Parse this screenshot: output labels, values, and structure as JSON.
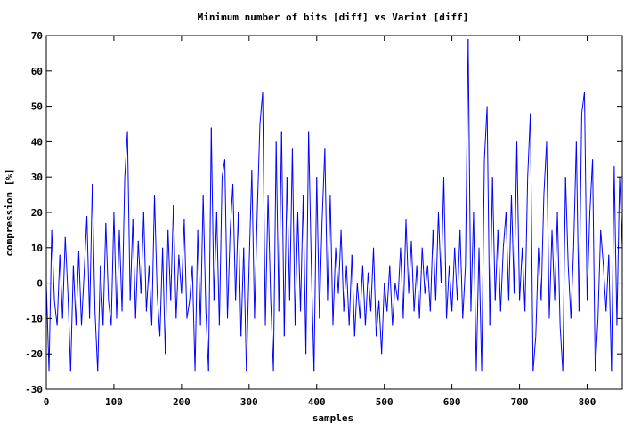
{
  "chart_data": {
    "type": "line",
    "title": "Minimum number of bits [diff] vs Varint [diff]",
    "xlabel": "samples",
    "ylabel": "compression [%]",
    "xlim": [
      0,
      852
    ],
    "ylim": [
      -30,
      70
    ],
    "xticks": [
      0,
      100,
      200,
      300,
      400,
      500,
      600,
      700,
      800
    ],
    "yticks": [
      -30,
      -20,
      -10,
      0,
      10,
      20,
      30,
      40,
      50,
      60,
      70
    ],
    "grid": false,
    "legend": "none",
    "series_color": "#0000ff",
    "x_start": 0,
    "x_step": 4,
    "series": [
      {
        "values": [
          0,
          -25,
          15,
          -5,
          -12,
          8,
          -10,
          13,
          -3,
          -25,
          5,
          -12,
          9,
          -12,
          3,
          19,
          -10,
          28,
          -8,
          -25,
          5,
          -12,
          17,
          -5,
          -12,
          20,
          -10,
          15,
          -8,
          30,
          43,
          -5,
          18,
          -10,
          12,
          -3,
          20,
          -8,
          5,
          -12,
          25,
          -3,
          -15,
          10,
          -20,
          15,
          -5,
          22,
          -10,
          8,
          -3,
          18,
          -10,
          -5,
          5,
          -25,
          15,
          -12,
          25,
          -8,
          -25,
          44,
          -5,
          20,
          -12,
          30,
          35,
          -10,
          15,
          28,
          -5,
          20,
          -15,
          10,
          -25,
          5,
          32,
          -10,
          20,
          45,
          54,
          -12,
          25,
          -5,
          -25,
          40,
          -8,
          43,
          -15,
          30,
          -5,
          38,
          -12,
          20,
          -8,
          25,
          -20,
          43,
          5,
          -25,
          30,
          -10,
          18,
          38,
          -5,
          25,
          -12,
          10,
          -3,
          15,
          -8,
          5,
          -12,
          8,
          -15,
          0,
          -10,
          5,
          -12,
          3,
          -8,
          10,
          -15,
          -5,
          -20,
          0,
          -8,
          5,
          -12,
          0,
          -5,
          10,
          -10,
          18,
          -3,
          12,
          -8,
          5,
          -10,
          10,
          -3,
          5,
          -8,
          15,
          -5,
          20,
          0,
          30,
          -10,
          5,
          -8,
          10,
          -5,
          15,
          -10,
          5,
          69,
          -8,
          20,
          -25,
          10,
          -25,
          35,
          50,
          -12,
          30,
          -5,
          15,
          -8,
          10,
          20,
          -5,
          25,
          -3,
          40,
          -5,
          10,
          -8,
          30,
          48,
          -25,
          -15,
          10,
          -5,
          25,
          40,
          -10,
          15,
          -5,
          20,
          -12,
          -25,
          30,
          5,
          -10,
          10,
          40,
          -8,
          48,
          54,
          -5,
          20,
          35,
          -25,
          -10,
          15,
          5,
          -8,
          8,
          -25,
          33,
          -12,
          30,
          10
        ]
      }
    ]
  }
}
